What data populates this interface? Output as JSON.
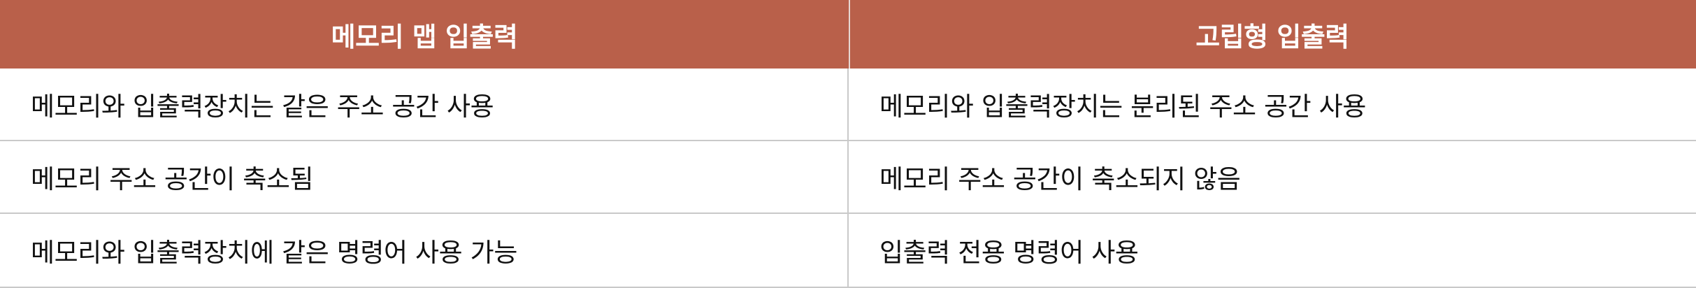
{
  "table": {
    "headers": [
      "메모리 맵 입출력",
      "고립형 입출력"
    ],
    "rows": [
      [
        "메모리와 입출력장치는 같은 주소 공간 사용",
        "메모리와 입출력장치는 분리된 주소 공간 사용"
      ],
      [
        "메모리 주소 공간이 축소됨",
        "메모리 주소 공간이 축소되지 않음"
      ],
      [
        "메모리와 입출력장치에 같은 명령어 사용 가능",
        "입출력 전용 명령어 사용"
      ]
    ]
  },
  "colors": {
    "header_background": "#b9604a",
    "header_text": "#ffffff",
    "cell_text": "#111111",
    "grid_line": "#c9c9c9"
  }
}
